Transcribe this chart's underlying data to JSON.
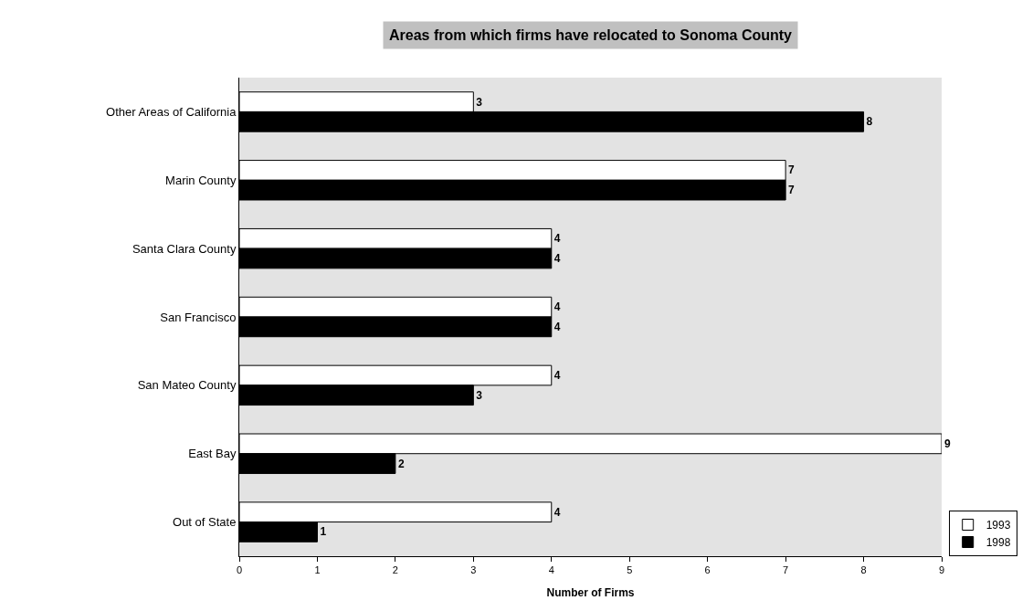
{
  "chart_data": {
    "type": "bar",
    "orientation": "horizontal",
    "title": "Areas from which firms have relocated to Sonoma County",
    "xlabel": "Number of Firms",
    "categories": [
      "Other Areas of California",
      "Marin County",
      "Santa Clara County",
      "San Francisco",
      "San Mateo County",
      "East Bay",
      "Out of State"
    ],
    "series": [
      {
        "name": "1993",
        "color": "#ffffff",
        "values": [
          3,
          7,
          4,
          4,
          4,
          9,
          4
        ]
      },
      {
        "name": "1998",
        "color": "#000000",
        "values": [
          8,
          7,
          4,
          4,
          3,
          2,
          1
        ]
      }
    ],
    "xlim": [
      0,
      9
    ],
    "xticks": [
      0,
      1,
      2,
      3,
      4,
      5,
      6,
      7,
      8,
      9
    ],
    "data_labels": true,
    "grid": false,
    "legend": "bottom right"
  }
}
